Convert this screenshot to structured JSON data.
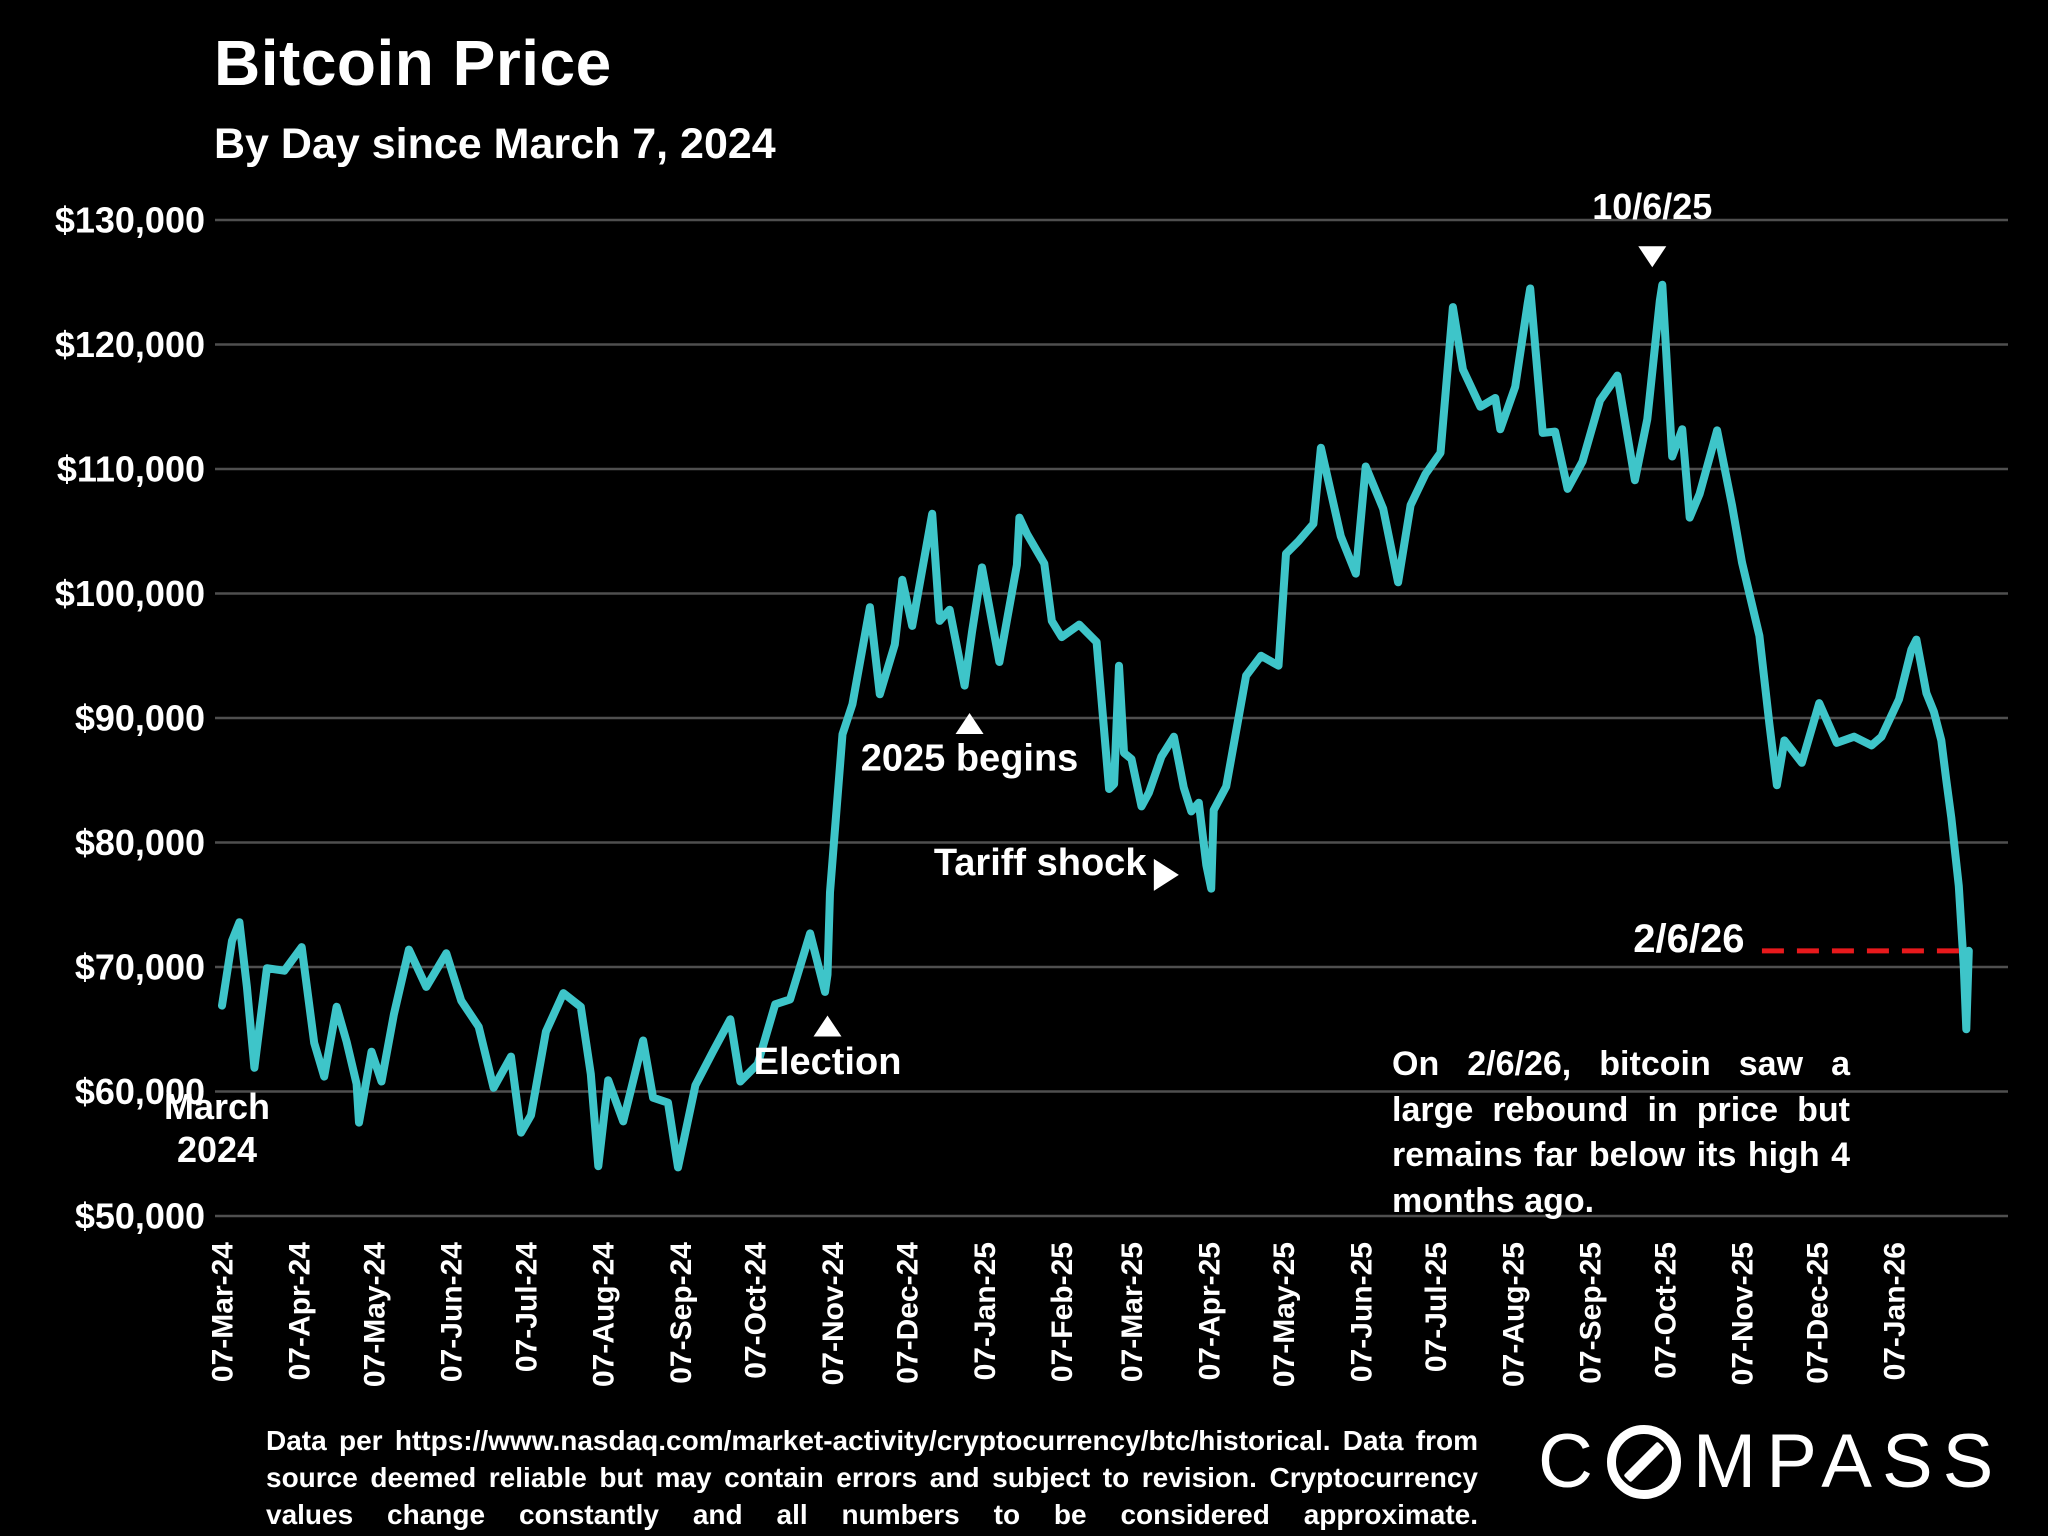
{
  "header": {
    "title": "Bitcoin Price",
    "subtitle": "By Day since March 7, 2024"
  },
  "colors": {
    "background": "#000000",
    "line": "#3ec5c9",
    "grid": "#4f4f4f",
    "text": "#ffffff",
    "reference_red": "#e8191c"
  },
  "chart_data": {
    "type": "line",
    "title": "Bitcoin Price",
    "subtitle": "By Day since March 7, 2024",
    "xlabel": "",
    "ylabel": "",
    "ylim": [
      50000,
      130000
    ],
    "grid": true,
    "legend_position": "none",
    "y_ticks": [
      {
        "value": 130000,
        "label": "$130,000"
      },
      {
        "value": 120000,
        "label": "$120,000"
      },
      {
        "value": 110000,
        "label": "$110,000"
      },
      {
        "value": 100000,
        "label": "$100,000"
      },
      {
        "value": 90000,
        "label": "$90,000"
      },
      {
        "value": 80000,
        "label": "$80,000"
      },
      {
        "value": 70000,
        "label": "$70,000"
      },
      {
        "value": 60000,
        "label": "$60,000"
      },
      {
        "value": 50000,
        "label": "$50,000"
      }
    ],
    "x_ticks": [
      {
        "day": 0,
        "label": "07-Mar-24"
      },
      {
        "day": 31,
        "label": "07-Apr-24"
      },
      {
        "day": 61,
        "label": "07-May-24"
      },
      {
        "day": 92,
        "label": "07-Jun-24"
      },
      {
        "day": 122,
        "label": "07-Jul-24"
      },
      {
        "day": 153,
        "label": "07-Aug-24"
      },
      {
        "day": 184,
        "label": "07-Sep-24"
      },
      {
        "day": 214,
        "label": "07-Oct-24"
      },
      {
        "day": 245,
        "label": "07-Nov-24"
      },
      {
        "day": 275,
        "label": "07-Dec-24"
      },
      {
        "day": 306,
        "label": "07-Jan-25"
      },
      {
        "day": 337,
        "label": "07-Feb-25"
      },
      {
        "day": 365,
        "label": "07-Mar-25"
      },
      {
        "day": 396,
        "label": "07-Apr-25"
      },
      {
        "day": 426,
        "label": "07-May-25"
      },
      {
        "day": 457,
        "label": "07-Jun-25"
      },
      {
        "day": 487,
        "label": "07-Jul-25"
      },
      {
        "day": 518,
        "label": "07-Aug-25"
      },
      {
        "day": 549,
        "label": "07-Sep-25"
      },
      {
        "day": 579,
        "label": "07-Oct-25"
      },
      {
        "day": 610,
        "label": "07-Nov-25"
      },
      {
        "day": 640,
        "label": "07-Dec-25"
      },
      {
        "day": 671,
        "label": "07-Jan-26"
      }
    ],
    "series": [
      {
        "name": "Bitcoin price (USD)",
        "points": [
          [
            0,
            66900
          ],
          [
            4,
            72100
          ],
          [
            7,
            73600
          ],
          [
            10,
            68400
          ],
          [
            13,
            61900
          ],
          [
            18,
            69900
          ],
          [
            25,
            69700
          ],
          [
            32,
            71600
          ],
          [
            37,
            63900
          ],
          [
            41,
            61200
          ],
          [
            46,
            66800
          ],
          [
            50,
            64000
          ],
          [
            54,
            60600
          ],
          [
            55,
            57500
          ],
          [
            60,
            63200
          ],
          [
            64,
            60800
          ],
          [
            69,
            66200
          ],
          [
            75,
            71400
          ],
          [
            82,
            68400
          ],
          [
            90,
            71100
          ],
          [
            96,
            67300
          ],
          [
            103,
            65200
          ],
          [
            109,
            60300
          ],
          [
            116,
            62800
          ],
          [
            120,
            56700
          ],
          [
            124,
            58100
          ],
          [
            130,
            64800
          ],
          [
            137,
            67900
          ],
          [
            144,
            66800
          ],
          [
            148,
            61400
          ],
          [
            151,
            54000
          ],
          [
            155,
            60900
          ],
          [
            161,
            57600
          ],
          [
            169,
            64100
          ],
          [
            173,
            59500
          ],
          [
            179,
            59100
          ],
          [
            183,
            53900
          ],
          [
            190,
            60500
          ],
          [
            197,
            63200
          ],
          [
            204,
            65800
          ],
          [
            208,
            60800
          ],
          [
            215,
            62200
          ],
          [
            222,
            67000
          ],
          [
            228,
            67400
          ],
          [
            236,
            72700
          ],
          [
            242,
            68000
          ],
          [
            243,
            69400
          ],
          [
            244,
            76000
          ],
          [
            249,
            88700
          ],
          [
            253,
            91100
          ],
          [
            260,
            98900
          ],
          [
            264,
            91900
          ],
          [
            270,
            95900
          ],
          [
            273,
            101100
          ],
          [
            277,
            97400
          ],
          [
            285,
            106400
          ],
          [
            288,
            97800
          ],
          [
            292,
            98700
          ],
          [
            298,
            92600
          ],
          [
            301,
            96900
          ],
          [
            305,
            102100
          ],
          [
            312,
            94500
          ],
          [
            319,
            102300
          ],
          [
            320,
            106100
          ],
          [
            323,
            104800
          ],
          [
            330,
            102400
          ],
          [
            333,
            97800
          ],
          [
            337,
            96500
          ],
          [
            344,
            97500
          ],
          [
            351,
            96100
          ],
          [
            356,
            84300
          ],
          [
            358,
            84700
          ],
          [
            360,
            94200
          ],
          [
            362,
            87200
          ],
          [
            365,
            86700
          ],
          [
            369,
            82900
          ],
          [
            372,
            84000
          ],
          [
            377,
            86900
          ],
          [
            382,
            88500
          ],
          [
            386,
            84400
          ],
          [
            389,
            82500
          ],
          [
            392,
            83200
          ],
          [
            395,
            78200
          ],
          [
            397,
            76300
          ],
          [
            398,
            82600
          ],
          [
            403,
            84500
          ],
          [
            411,
            93400
          ],
          [
            417,
            95000
          ],
          [
            424,
            94200
          ],
          [
            427,
            103200
          ],
          [
            432,
            104200
          ],
          [
            438,
            105600
          ],
          [
            441,
            111700
          ],
          [
            449,
            104600
          ],
          [
            455,
            101600
          ],
          [
            459,
            110200
          ],
          [
            466,
            106800
          ],
          [
            472,
            100900
          ],
          [
            477,
            107100
          ],
          [
            483,
            109600
          ],
          [
            489,
            111300
          ],
          [
            494,
            123000
          ],
          [
            498,
            118000
          ],
          [
            505,
            115000
          ],
          [
            511,
            115700
          ],
          [
            513,
            113200
          ],
          [
            519,
            116600
          ],
          [
            524,
            123300
          ],
          [
            525,
            124500
          ],
          [
            530,
            112900
          ],
          [
            535,
            113000
          ],
          [
            540,
            108400
          ],
          [
            546,
            110600
          ],
          [
            553,
            115500
          ],
          [
            560,
            117500
          ],
          [
            567,
            109100
          ],
          [
            572,
            114000
          ],
          [
            577,
            123500
          ],
          [
            578,
            124800
          ],
          [
            582,
            111000
          ],
          [
            586,
            113200
          ],
          [
            589,
            106100
          ],
          [
            593,
            108000
          ],
          [
            600,
            113100
          ],
          [
            606,
            107100
          ],
          [
            610,
            102500
          ],
          [
            617,
            96600
          ],
          [
            621,
            89500
          ],
          [
            624,
            84600
          ],
          [
            627,
            88200
          ],
          [
            634,
            86400
          ],
          [
            641,
            91200
          ],
          [
            648,
            88000
          ],
          [
            655,
            88500
          ],
          [
            662,
            87800
          ],
          [
            666,
            88500
          ],
          [
            673,
            91500
          ],
          [
            678,
            95500
          ],
          [
            680,
            96300
          ],
          [
            684,
            92000
          ],
          [
            687,
            90500
          ],
          [
            690,
            88200
          ],
          [
            692,
            85000
          ],
          [
            694,
            82000
          ],
          [
            697,
            76500
          ],
          [
            699,
            70000
          ],
          [
            700,
            65000
          ],
          [
            701,
            71300
          ]
        ]
      }
    ],
    "annotations": [
      {
        "id": "high-10-6-25",
        "text": "10/6/25",
        "day": 574,
        "price": 130100,
        "anchor": "middle",
        "size": 36,
        "marker": "down",
        "marker_day": 574,
        "marker_price": 126200
      },
      {
        "id": "2025-begins",
        "text": "2025 begins",
        "day": 300,
        "price": 85800,
        "anchor": "middle",
        "size": 38,
        "marker": "up",
        "marker_day": 300,
        "marker_price": 90400
      },
      {
        "id": "election",
        "text": "Election",
        "day": 243,
        "price": 61400,
        "anchor": "middle",
        "size": 38,
        "marker": "up",
        "marker_day": 243,
        "marker_price": 66100
      },
      {
        "id": "tariff-shock",
        "text": "Tariff shock",
        "day": 371,
        "price": 77400,
        "anchor": "end",
        "size": 38,
        "marker": "right",
        "marker_day": 384,
        "marker_price": 77400
      },
      {
        "id": "rebound-2-6-26",
        "text": "2/6/26",
        "day": 611,
        "price": 71200,
        "anchor": "end",
        "size": 40
      },
      {
        "id": "start-march-2024",
        "text": "March\n2024",
        "day": -2,
        "price": 57800,
        "anchor": "middle",
        "size": 36
      }
    ],
    "reference_line": {
      "price": 71300,
      "day_start": 618,
      "day_end": 701,
      "color": "#e8191c",
      "style": "dashed"
    }
  },
  "note": {
    "text": "On 2/6/26, bitcoin saw a large rebound in price but remains far below its high 4 months ago."
  },
  "footer": {
    "text": "Data per https://www.nasdaq.com/market-activity/cryptocurrency/btc/historical. Data from source deemed reliable but may contain errors and subject to revision. Cryptocurrency values change constantly and all numbers to be considered approximate."
  },
  "logo": {
    "text": "COMPASS"
  }
}
